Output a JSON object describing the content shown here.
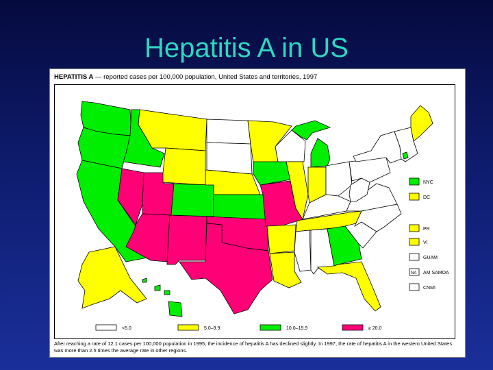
{
  "slide_title": "Hepatitis A in US",
  "map": {
    "header_bold": "HEPATITIS A",
    "header_rest": " — reported cases per 100,000 population, United States and territories, 1997",
    "caption": "After reaching a rate of 12.1 cases per 100,000 population in 1995, the incidence of hepatitis A has declined slightly. In 1997, the rate of hepatitis A in the western United States was more than 2.5 times the average rate in other regions.",
    "colors": {
      "lt5": "#ffffff",
      "5to9": "#ffff00",
      "10to19": "#00ee00",
      "gt20": "#ff0077"
    },
    "legend": [
      {
        "key": "lt5",
        "label": "<5.0"
      },
      {
        "key": "5to9",
        "label": "5.0–9.9"
      },
      {
        "key": "10to19",
        "label": "10.0–19.9"
      },
      {
        "key": "gt20",
        "label": "≥ 20.0"
      }
    ],
    "territories": [
      {
        "code": "NYC",
        "key": "10to19"
      },
      {
        "code": "DC",
        "key": "5to9"
      },
      {
        "code": "PR",
        "key": "5to9"
      },
      {
        "code": "VI",
        "key": "5to9"
      },
      {
        "code": "GUAM",
        "key": "lt5"
      },
      {
        "code": "AM SAMOA",
        "key": "lt5",
        "box_text": "NA"
      },
      {
        "code": "CNMI",
        "key": "lt5"
      }
    ],
    "states": {
      "WA": "10to19",
      "OR": "10to19",
      "CA": "10to19",
      "ID": "10to19",
      "NV": "gt20",
      "UT": "gt20",
      "AZ": "gt20",
      "NM": "gt20",
      "MT": "5to9",
      "WY": "5to9",
      "CO": "10to19",
      "ND": "lt5",
      "SD": "lt5",
      "NE": "5to9",
      "KS": "10to19",
      "OK": "gt20",
      "TX": "gt20",
      "MN": "5to9",
      "IA": "10to19",
      "MO": "gt20",
      "AR": "5to9",
      "LA": "5to9",
      "WI": "lt5",
      "IL": "5to9",
      "MI": "10to19",
      "IN": "5to9",
      "OH": "lt5",
      "KY": "lt5",
      "TN": "5to9",
      "MS": "lt5",
      "AL": "lt5",
      "GA": "10to19",
      "FL": "5to9",
      "SC": "lt5",
      "NC": "lt5",
      "VA": "lt5",
      "WV": "lt5",
      "PA": "lt5",
      "NY": "lt5",
      "ME": "5to9",
      "NE_small": "lt5",
      "AK": "5to9",
      "HI": "10to19"
    }
  }
}
